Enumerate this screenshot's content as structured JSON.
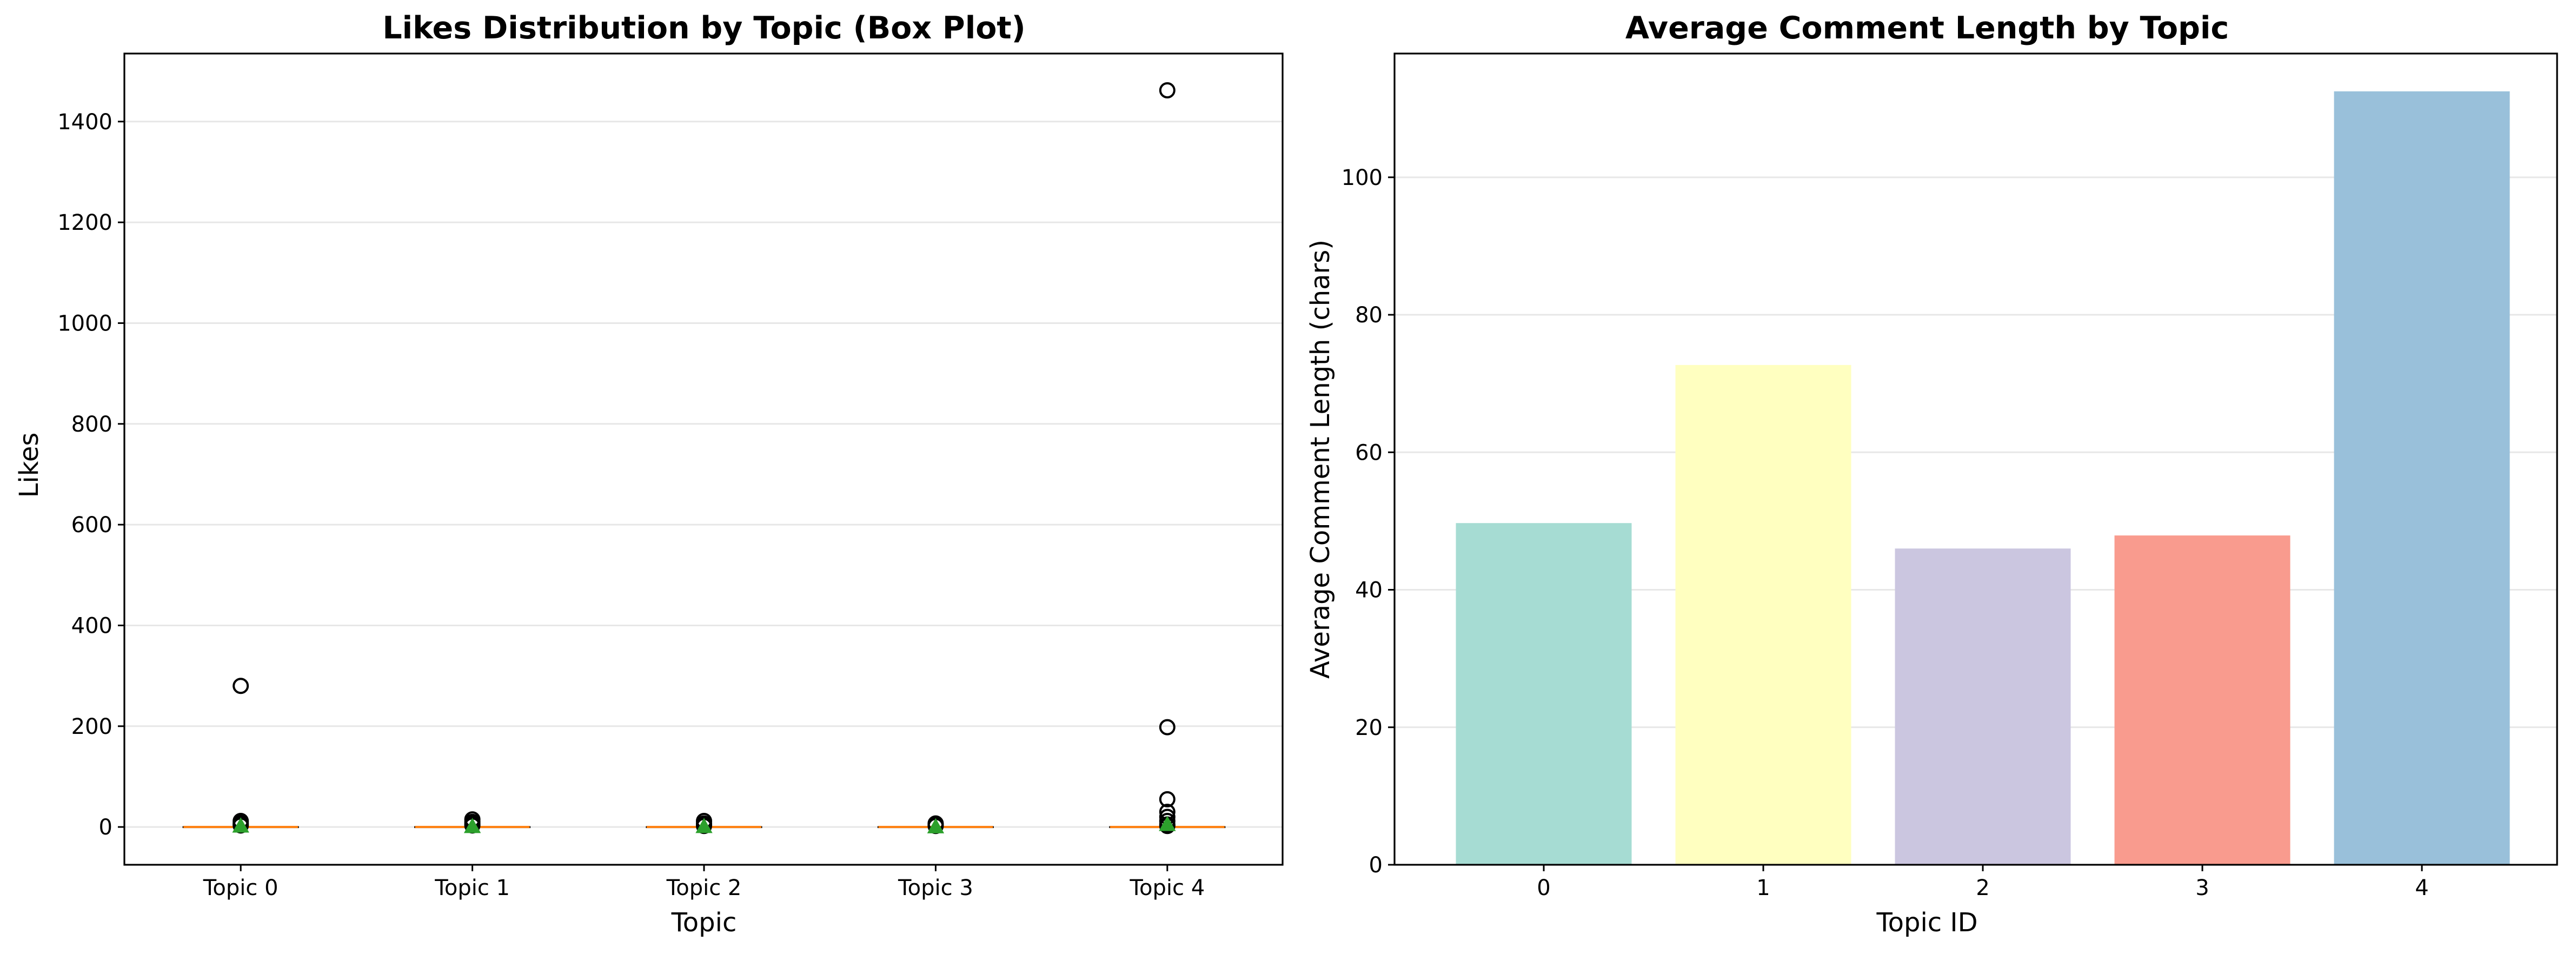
{
  "chart_data": [
    {
      "type": "box",
      "title": "Likes Distribution by Topic (Box Plot)",
      "xlabel": "Topic",
      "ylabel": "Likes",
      "categories": [
        "Topic 0",
        "Topic 1",
        "Topic 2",
        "Topic 3",
        "Topic 4"
      ],
      "ylim": [
        -75,
        1535
      ],
      "yticks": [
        0,
        200,
        400,
        600,
        800,
        1000,
        1200,
        1400
      ],
      "grid": "y",
      "median_color": "#ff7f0e",
      "mean_color": "#2ca02c",
      "boxes": [
        {
          "category": "Topic 0",
          "q1": 0,
          "median": 0,
          "q3": 0,
          "whisker_low": 0,
          "whisker_high": 0,
          "mean": 2,
          "outliers": [
            280,
            12,
            8,
            5,
            3
          ]
        },
        {
          "category": "Topic 1",
          "q1": 0,
          "median": 0,
          "q3": 0,
          "whisker_low": 0,
          "whisker_high": 0,
          "mean": 1,
          "outliers": [
            15,
            10,
            6,
            3
          ]
        },
        {
          "category": "Topic 2",
          "q1": 0,
          "median": 0,
          "q3": 0,
          "whisker_low": 0,
          "whisker_high": 0,
          "mean": 1,
          "outliers": [
            12,
            7,
            4,
            2
          ]
        },
        {
          "category": "Topic 3",
          "q1": 0,
          "median": 0,
          "q3": 0,
          "whisker_low": 0,
          "whisker_high": 0,
          "mean": 0.5,
          "outliers": [
            7,
            4,
            2
          ]
        },
        {
          "category": "Topic 4",
          "q1": 0,
          "median": 0,
          "q3": 0,
          "whisker_low": 0,
          "whisker_high": 0,
          "mean": 5,
          "outliers": [
            1462,
            198,
            55,
            30,
            20,
            12,
            5,
            2
          ]
        }
      ]
    },
    {
      "type": "bar",
      "title": "Average Comment Length by Topic",
      "xlabel": "Topic ID",
      "ylabel": "Average Comment Length (chars)",
      "categories": [
        "0",
        "1",
        "2",
        "3",
        "4"
      ],
      "values": [
        49.7,
        72.7,
        46.0,
        47.9,
        112.5
      ],
      "colors": [
        "#a6dcd3",
        "#ffffc0",
        "#cbc6e0",
        "#f99b8e",
        "#99c0da"
      ],
      "ylim": [
        0,
        118
      ],
      "yticks": [
        0,
        20,
        40,
        60,
        80,
        100
      ],
      "grid": "y"
    }
  ]
}
